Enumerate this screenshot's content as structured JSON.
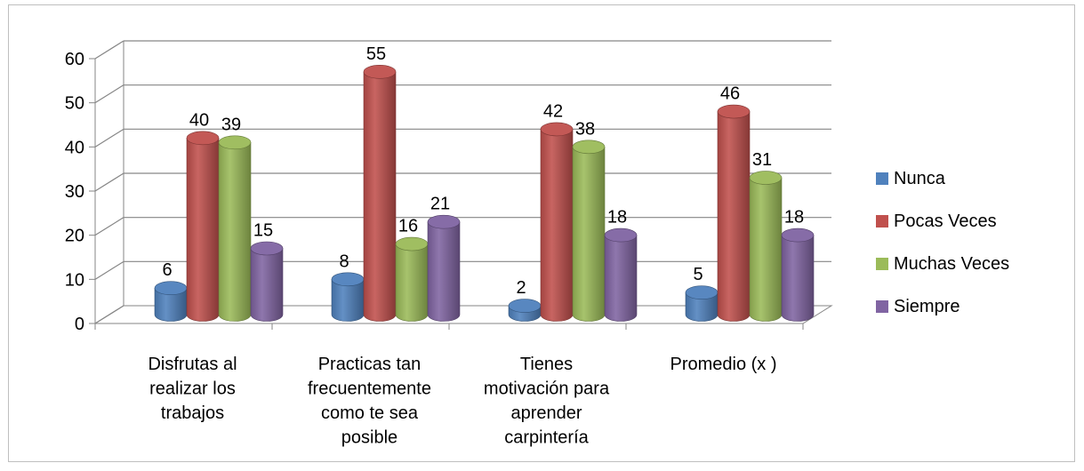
{
  "chart_data": {
    "type": "bar",
    "categories": [
      "Disfrutas al realizar los trabajos",
      "Practicas tan frecuentemente como te sea posible",
      "Tienes motivación para aprender carpintería",
      "Promedio (x )"
    ],
    "category_lines": [
      [
        "Disfrutas al",
        "realizar los",
        "trabajos"
      ],
      [
        "Practicas tan",
        "frecuentemente",
        "como te sea",
        "posible"
      ],
      [
        "Tienes",
        "motivación para",
        "aprender",
        "carpintería"
      ],
      [
        "Promedio (x )"
      ]
    ],
    "series": [
      {
        "name": "Nunca",
        "values": [
          6,
          8,
          2,
          5
        ],
        "color": "#4f81bd"
      },
      {
        "name": "Pocas Veces",
        "values": [
          40,
          55,
          42,
          46
        ],
        "color": "#c0504d"
      },
      {
        "name": "Muchas Veces",
        "values": [
          39,
          16,
          38,
          31
        ],
        "color": "#9bbb59"
      },
      {
        "name": "Siempre",
        "values": [
          15,
          21,
          18,
          18
        ],
        "color": "#8064a2"
      }
    ],
    "ylim": [
      0,
      60
    ],
    "yticks": [
      0,
      10,
      20,
      30,
      40,
      50,
      60
    ],
    "grid": true,
    "legend_position": "right",
    "style": "3d-cylinder"
  }
}
